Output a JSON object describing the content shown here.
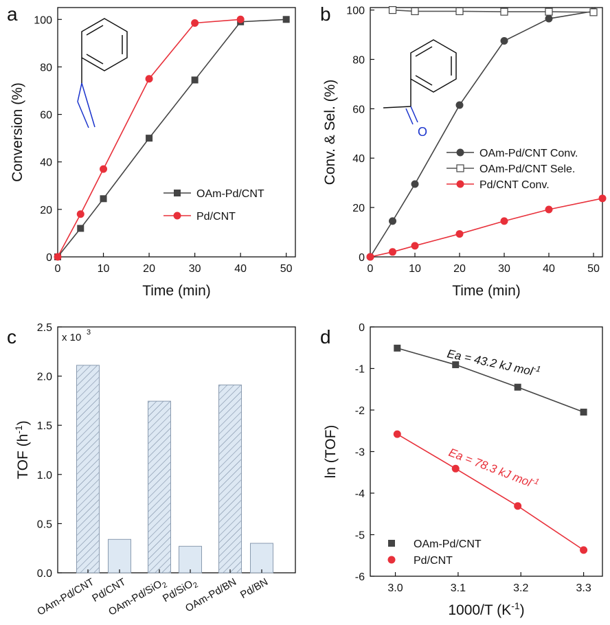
{
  "colors": {
    "gray": "#444444",
    "red": "#e8303a",
    "hatch_fill": "#dde8f3",
    "bar_stroke": "#8a9bb0",
    "blue": "#1a33cc"
  },
  "chart_data": [
    {
      "panel": "a",
      "type": "line",
      "xlabel": "Time (min)",
      "ylabel": "Conversion (%)",
      "xlim": [
        0,
        52
      ],
      "ylim": [
        0,
        105
      ],
      "xticks": [
        0,
        10,
        20,
        30,
        40,
        50
      ],
      "yticks": [
        0,
        20,
        40,
        60,
        80,
        100
      ],
      "legend_position": "center-right",
      "series": [
        {
          "name": "OAm-Pd/CNT",
          "marker": "square",
          "color": "#444444",
          "x": [
            0,
            5,
            10,
            20,
            30,
            40,
            50
          ],
          "y": [
            0,
            12,
            24.5,
            50,
            74.5,
            99,
            100
          ]
        },
        {
          "name": "Pd/CNT",
          "marker": "circle",
          "color": "#e8303a",
          "x": [
            0,
            5,
            10,
            20,
            30,
            40
          ],
          "y": [
            0,
            18,
            37,
            75,
            98.5,
            100
          ]
        }
      ],
      "inset": "styrene structure"
    },
    {
      "panel": "b",
      "type": "line",
      "xlabel": "Time (min)",
      "ylabel": "Conv. & Sel. (%)",
      "xlim": [
        0,
        52
      ],
      "ylim": [
        0,
        101
      ],
      "xticks": [
        0,
        10,
        20,
        30,
        40,
        50
      ],
      "yticks": [
        0,
        20,
        40,
        60,
        80,
        100
      ],
      "legend_position": "center-right",
      "series": [
        {
          "name": "OAm-Pd/CNT Conv.",
          "marker": "circle",
          "color": "#444444",
          "x": [
            0,
            5,
            10,
            20,
            30,
            40,
            50
          ],
          "y": [
            0,
            14.5,
            29.5,
            61.5,
            87.5,
            96.5,
            99.5
          ]
        },
        {
          "name": "OAm-Pd/CNT Sele.",
          "marker": "open-square",
          "color": "#444444",
          "x": [
            5,
            10,
            20,
            30,
            40,
            50
          ],
          "y": [
            100,
            99.5,
            99.5,
            99.3,
            99.3,
            99.1
          ]
        },
        {
          "name": "Pd/CNT Conv.",
          "marker": "circle",
          "color": "#e8303a",
          "x": [
            0,
            5,
            10,
            20,
            30,
            40,
            52
          ],
          "y": [
            0,
            2,
            4.5,
            9.3,
            14.5,
            19.2,
            23.7
          ]
        }
      ],
      "inset": "acetophenone structure",
      "inset_atom": "O"
    },
    {
      "panel": "c",
      "type": "bar",
      "ylabel": "TOF (h",
      "ylabel_sup": "-1",
      "ylabel_end": ")",
      "multiplier_label": "x 10",
      "multiplier_exp": "3",
      "ylim": [
        0,
        2.5
      ],
      "yticks": [
        0.0,
        0.5,
        1.0,
        1.5,
        2.0,
        2.5
      ],
      "categories": [
        {
          "main": "OAm-Pd/CNT",
          "sub": ""
        },
        {
          "main": "Pd/CNT",
          "sub": ""
        },
        {
          "main": "OAm-Pd/SiO",
          "sub": "2"
        },
        {
          "main": "Pd/SiO",
          "sub": "2"
        },
        {
          "main": "OAm-Pd/BN",
          "sub": ""
        },
        {
          "main": "Pd/BN",
          "sub": ""
        }
      ],
      "values": [
        2.11,
        0.34,
        1.745,
        0.27,
        1.91,
        0.3
      ],
      "hatched": [
        true,
        false,
        true,
        false,
        true,
        false
      ]
    },
    {
      "panel": "d",
      "type": "scatter",
      "xlabel": "1000/T (K",
      "xlabel_sup": "-1",
      "xlabel_end": ")",
      "ylabel": "ln (TOF)",
      "xlim": [
        2.96,
        3.33
      ],
      "ylim": [
        -6,
        0
      ],
      "xticks": [
        3.0,
        3.1,
        3.2,
        3.3
      ],
      "yticks": [
        0,
        -1,
        -2,
        -3,
        -4,
        -5,
        -6
      ],
      "legend_position": "bottom-left",
      "series": [
        {
          "name": "OAm-Pd/CNT",
          "marker": "square",
          "color": "#444444",
          "x": [
            3.003,
            3.096,
            3.195,
            3.3
          ],
          "y": [
            -0.51,
            -0.91,
            -1.45,
            -2.05
          ],
          "annotation": "Ea = 43.2 kJ mol",
          "annotation_sup": "-1"
        },
        {
          "name": "Pd/CNT",
          "marker": "circle",
          "color": "#e8303a",
          "x": [
            3.003,
            3.096,
            3.195,
            3.3
          ],
          "y": [
            -2.58,
            -3.41,
            -4.31,
            -5.37
          ],
          "annotation": "Ea = 78.3 kJ mol",
          "annotation_sup": "-1"
        }
      ]
    }
  ],
  "panel_labels": [
    "a",
    "b",
    "c",
    "d"
  ]
}
